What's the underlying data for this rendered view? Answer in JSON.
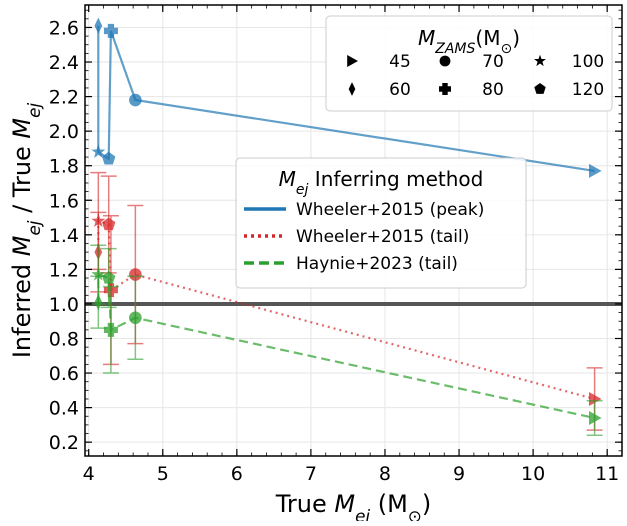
{
  "colors": {
    "peak": "#1f77b4",
    "wheeler_tail": "#d62728",
    "haynie_tail": "#2ca02c",
    "reference_line": "#555555",
    "grid": "#e6e6e6"
  },
  "chart_data": {
    "type": "line",
    "xlabel": "True M_ej (M⊙)",
    "ylabel": "Inferred M_ej / True M_ej",
    "xlim": [
      3.95,
      11.2
    ],
    "ylim": [
      0.12,
      2.73
    ],
    "xticks": [
      "4",
      "5",
      "6",
      "7",
      "8",
      "9",
      "10",
      "11"
    ],
    "yticks": [
      "0.2",
      "0.4",
      "0.6",
      "0.8",
      "1.0",
      "1.2",
      "1.4",
      "1.6",
      "1.8",
      "2.0",
      "2.2",
      "2.4",
      "2.6"
    ],
    "grid": true,
    "reference_line_y": 1.0,
    "mzams_legend": {
      "title": "M_ZAMS(M⊙)",
      "placement": "top-right",
      "entries": [
        {
          "label": "45",
          "marker": "triangle-right"
        },
        {
          "label": "70",
          "marker": "circle"
        },
        {
          "label": "100",
          "marker": "star"
        },
        {
          "label": "60",
          "marker": "thin-diamond"
        },
        {
          "label": "80",
          "marker": "plus"
        },
        {
          "label": "120",
          "marker": "pentagon"
        }
      ]
    },
    "method_legend": {
      "title": "M_ej Inferring method",
      "placement": "center",
      "entries": [
        {
          "label": "Wheeler+2015 (peak)",
          "style": "solid"
        },
        {
          "label": "Wheeler+2015 (tail)",
          "style": "dotted"
        },
        {
          "label": "Haynie+2023 (tail)",
          "style": "dashed"
        }
      ]
    },
    "series": [
      {
        "name": "Wheeler+2015 (peak)",
        "style": "solid",
        "points": [
          {
            "mzams": "60",
            "x": 4.13,
            "y": 2.61
          },
          {
            "mzams": "100",
            "x": 4.13,
            "y": 1.88
          },
          {
            "mzams": "120",
            "x": 4.27,
            "y": 1.84
          },
          {
            "mzams": "80",
            "x": 4.3,
            "y": 2.58
          },
          {
            "mzams": "70",
            "x": 4.63,
            "y": 2.18
          },
          {
            "mzams": "45",
            "x": 10.83,
            "y": 1.77
          }
        ]
      },
      {
        "name": "Wheeler+2015 (tail)",
        "style": "dotted",
        "points": [
          {
            "mzams": "60",
            "x": 4.13,
            "y": 1.3,
            "err": 0.23
          },
          {
            "mzams": "100",
            "x": 4.13,
            "y": 1.48,
            "err": 0.28
          },
          {
            "mzams": "120",
            "x": 4.27,
            "y": 1.46,
            "err": 0.28
          },
          {
            "mzams": "80",
            "x": 4.3,
            "y": 1.08,
            "err": 0.43
          },
          {
            "mzams": "70",
            "x": 4.63,
            "y": 1.17,
            "err": 0.4
          },
          {
            "mzams": "45",
            "x": 10.83,
            "y": 0.45,
            "err": 0.18
          }
        ]
      },
      {
        "name": "Haynie+2023 (tail)",
        "style": "dashed",
        "points": [
          {
            "mzams": "60",
            "x": 4.13,
            "y": 1.01,
            "err": 0.15
          },
          {
            "mzams": "100",
            "x": 4.13,
            "y": 1.17,
            "err": 0.17
          },
          {
            "mzams": "120",
            "x": 4.27,
            "y": 1.15,
            "err": 0.17
          },
          {
            "mzams": "80",
            "x": 4.3,
            "y": 0.85,
            "err": 0.25
          },
          {
            "mzams": "70",
            "x": 4.63,
            "y": 0.92,
            "err": 0.24
          },
          {
            "mzams": "45",
            "x": 10.83,
            "y": 0.34,
            "err": 0.1
          }
        ]
      }
    ]
  }
}
